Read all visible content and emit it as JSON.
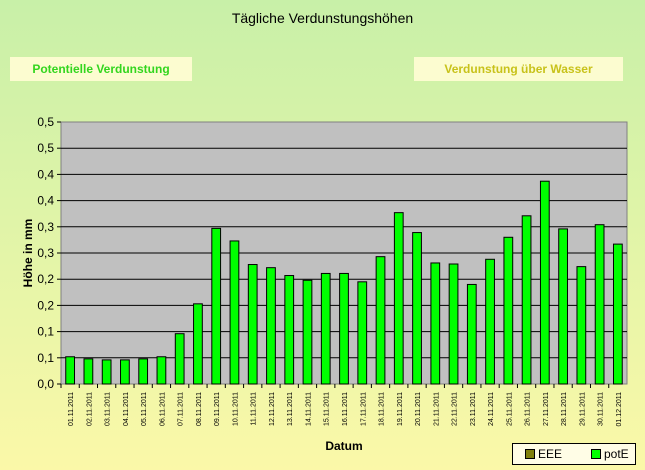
{
  "title": "Tägliche Verdunstungshöhen",
  "buttons": {
    "potentielle": "Potentielle Verdunstung",
    "wasser": "Verdunstung über Wasser"
  },
  "legend": [
    {
      "name": "EEE",
      "color": "#80800a"
    },
    {
      "name": "potE",
      "color": "#00ff00"
    }
  ],
  "chart_data": {
    "type": "bar",
    "title": "Tägliche Verdunstungshöhen",
    "xlabel": "Datum",
    "ylabel": "Höhe in mm",
    "ylim": [
      0,
      0.5
    ],
    "grid": true,
    "legend_position": "bottom-right",
    "y_tick_labels": [
      "0,0",
      "0,1",
      "0,1",
      "0,2",
      "0,2",
      "0,3",
      "0,3",
      "0,4",
      "0,4",
      "0,5",
      "0,5"
    ],
    "categories": [
      "01.11.2011",
      "02.11.2011",
      "03.11.2011",
      "04.11.2011",
      "05.11.2011",
      "06.11.2011",
      "07.11.2011",
      "08.11.2011",
      "09.11.2011",
      "10.11.2011",
      "11.11.2011",
      "12.11.2011",
      "13.11.2011",
      "14.11.2011",
      "15.11.2011",
      "16.11.2011",
      "17.11.2011",
      "18.11.2011",
      "19.11.2011",
      "20.11.2011",
      "21.11.2011",
      "22.11.2011",
      "23.11.2011",
      "24.11.2011",
      "25.11.2011",
      "26.11.2011",
      "27.11.2011",
      "28.11.2011",
      "29.11.2011",
      "30.11.2011",
      "01.12.2011"
    ],
    "series": [
      {
        "name": "potE",
        "color": "#00ff00",
        "values": [
          0.052,
          0.048,
          0.046,
          0.046,
          0.048,
          0.052,
          0.096,
          0.153,
          0.297,
          0.273,
          0.228,
          0.222,
          0.207,
          0.198,
          0.211,
          0.211,
          0.195,
          0.243,
          0.327,
          0.289,
          0.231,
          0.229,
          0.19,
          0.238,
          0.28,
          0.321,
          0.387,
          0.296,
          0.224,
          0.304,
          0.267
        ]
      }
    ]
  }
}
